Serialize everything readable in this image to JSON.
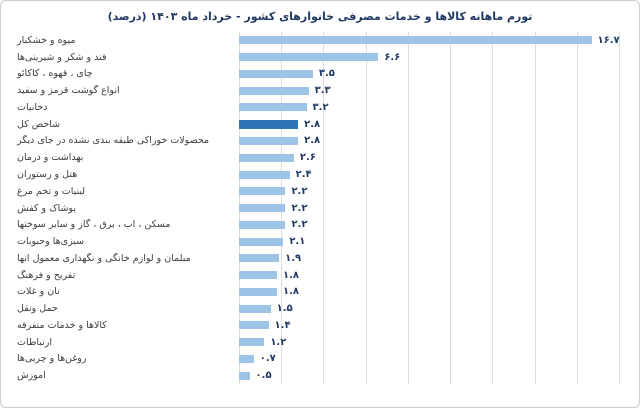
{
  "colors": {
    "bar": "#9DC3E6",
    "highlight": "#2E75B6",
    "gridline": "#DCDCDC",
    "value_text": "#1F3864",
    "title_text": "#1F3864"
  },
  "chart_data": {
    "type": "bar",
    "orientation": "horizontal",
    "title": "تورم ماهانه کالاها و خدمات مصرفی خانوارهای کشور - خرداد ماه ۱۴۰۳ (درصد)",
    "xlabel": "",
    "ylabel": "",
    "xlim": [
      0,
      18
    ],
    "grid_step": 2,
    "grid": true,
    "legend": false,
    "highlight_category": "شاخص کل",
    "highlight_index": 5,
    "categories": [
      "میوه و خشکبار",
      "قند و شکر و شیرینی‌ها",
      "چای ، قهوه ، کاکائو",
      "انواع گوشت قرمز و سفید",
      "دخانیات",
      "شاخص کل",
      "محصولات خوراکی طبقه بندی نشده در جای دیگر",
      "بهداشت و درمان",
      "هتل و رستوران",
      "لبنیات و تخم مرغ",
      "پوشاک و کفش",
      "مسکن ، آب ، برق ، گاز و سایر سوختها",
      "سبزی‌ها وحبوبات",
      "مبلمان و لوازم خانگی و نگهداری معمول آنها",
      "تفریح و فرهنگ",
      "نان و غلات",
      "حمل ونقل",
      "کالاها و خدمات متفرقه",
      "ارتباطات",
      "روغن‌ها و چربی‌ها",
      "آموزش"
    ],
    "values": [
      16.7,
      6.6,
      3.5,
      3.3,
      3.2,
      2.8,
      2.8,
      2.6,
      2.4,
      2.2,
      2.2,
      2.2,
      2.1,
      1.9,
      1.8,
      1.8,
      1.5,
      1.4,
      1.2,
      0.7,
      0.5
    ],
    "value_labels": [
      "۱۶.۷",
      "۶.۶",
      "۳.۵",
      "۳.۳",
      "۳.۲",
      "۲.۸",
      "۲.۸",
      "۲.۶",
      "۲.۴",
      "۲.۲",
      "۲.۲",
      "۲.۲",
      "۲.۱",
      "۱.۹",
      "۱.۸",
      "۱.۸",
      "۱.۵",
      "۱.۴",
      "۱.۲",
      "۰.۷",
      "۰.۵"
    ]
  }
}
